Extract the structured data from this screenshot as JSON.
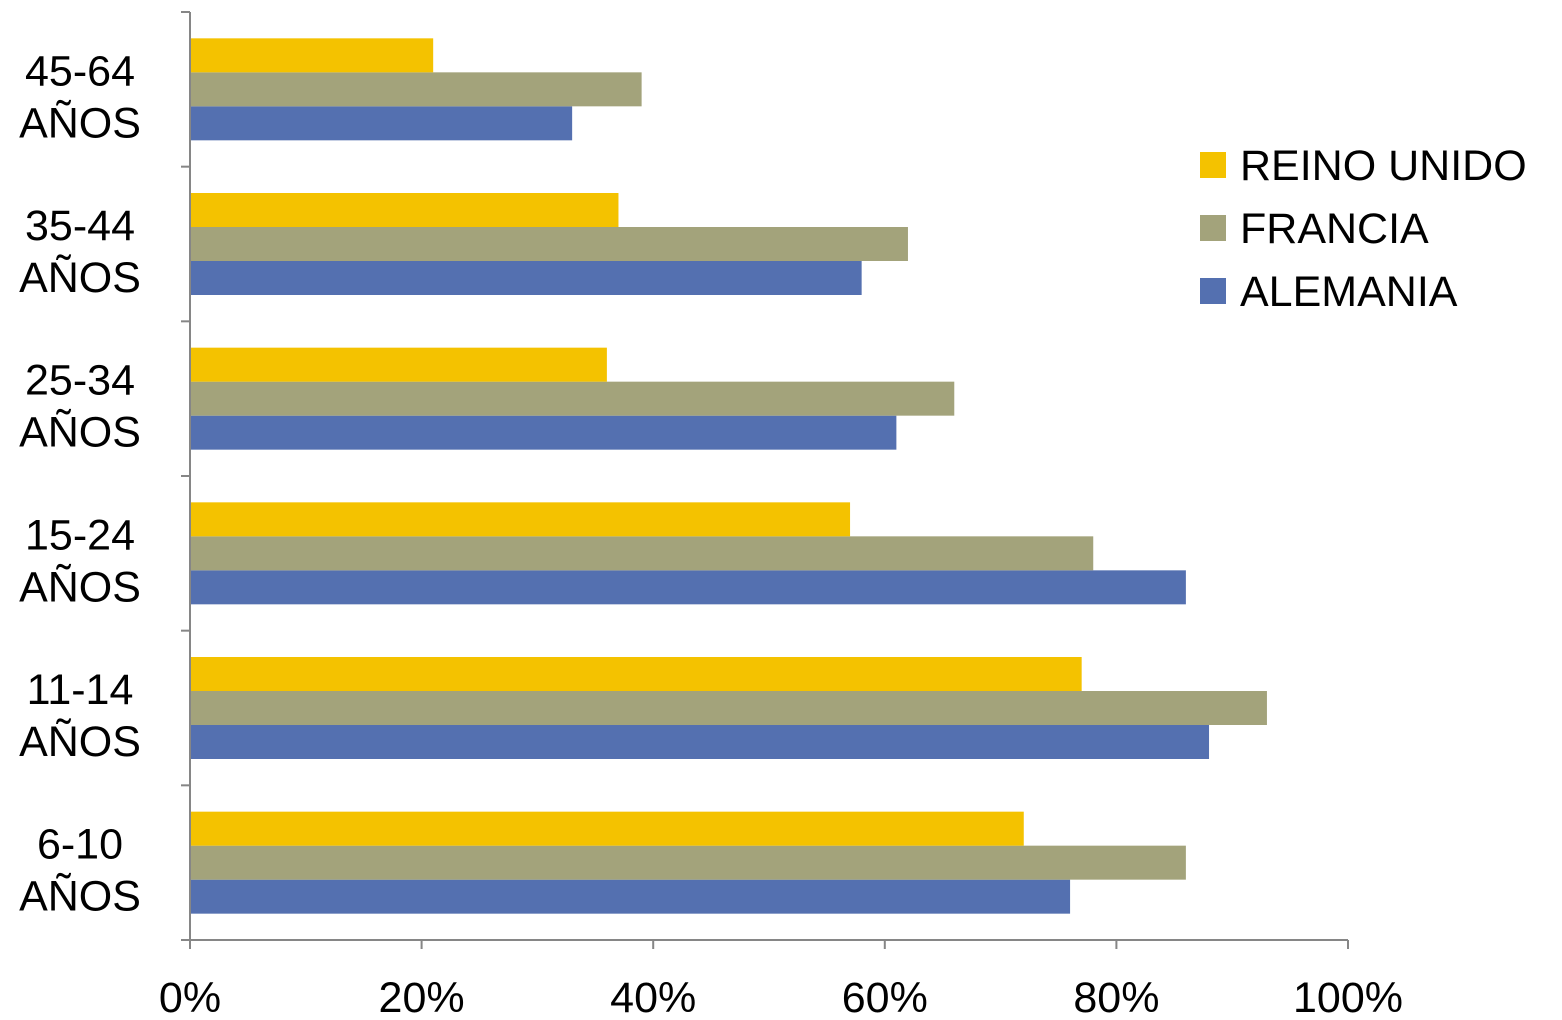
{
  "chart_data": {
    "type": "bar",
    "orientation": "horizontal",
    "categories": [
      [
        "6-10",
        "AÑOS"
      ],
      [
        "11-14",
        "AÑOS"
      ],
      [
        "15-24",
        "AÑOS"
      ],
      [
        "25-34",
        "AÑOS"
      ],
      [
        "35-44",
        "AÑOS"
      ],
      [
        "45-64",
        "AÑOS"
      ]
    ],
    "series": [
      {
        "name": "ALEMANIA",
        "color": "#5470b0",
        "values": [
          76,
          88,
          86,
          61,
          58,
          33
        ]
      },
      {
        "name": "FRANCIA",
        "color": "#a3a37b",
        "values": [
          86,
          93,
          78,
          66,
          62,
          39
        ]
      },
      {
        "name": "REINO UNIDO",
        "color": "#f4c200",
        "values": [
          72,
          77,
          57,
          36,
          37,
          21
        ]
      }
    ],
    "xlim": [
      0,
      100
    ],
    "x_ticks": [
      0,
      20,
      40,
      60,
      80,
      100
    ],
    "x_tick_labels": [
      "0%",
      "20%",
      "40%",
      "60%",
      "80%",
      "100%"
    ],
    "legend_order": [
      "REINO UNIDO",
      "FRANCIA",
      "ALEMANIA"
    ],
    "legend_position": "right",
    "grid": false
  }
}
